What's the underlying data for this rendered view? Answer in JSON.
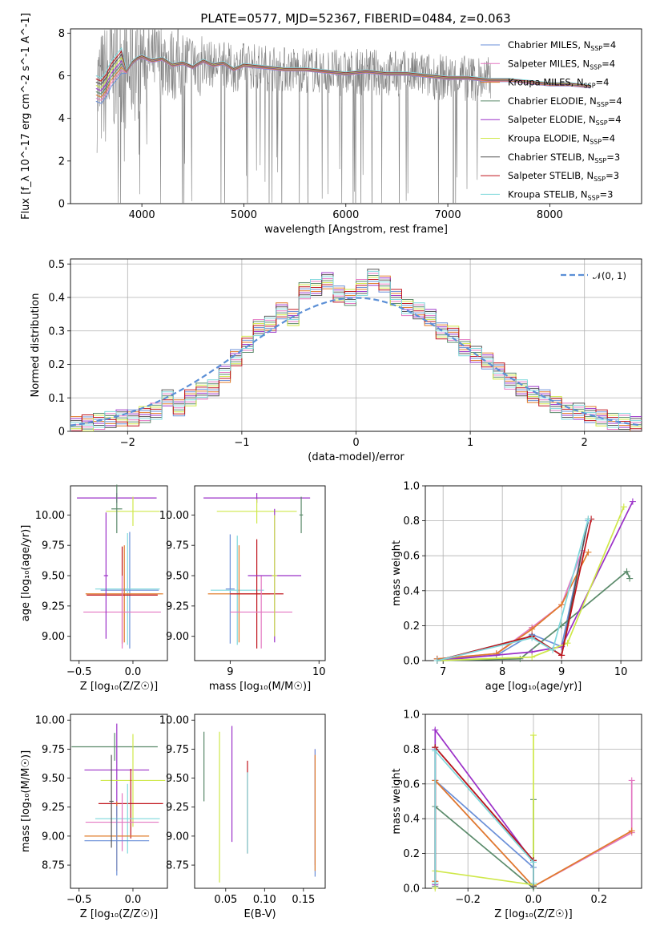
{
  "figure": {
    "title": "PLATE=0577, MJD=52367, FIBERID=0484, z=0.063"
  },
  "models": [
    {
      "name": "Chabrier MILES",
      "nssp": "4",
      "color": "#6a8fd8"
    },
    {
      "name": "Salpeter MILES",
      "nssp": "4",
      "color": "#e377c2"
    },
    {
      "name": "Kroupa MILES",
      "nssp": "4",
      "color": "#e07b2a"
    },
    {
      "name": "Chabrier ELODIE",
      "nssp": "4",
      "color": "#5a8a6a"
    },
    {
      "name": "Salpeter ELODIE",
      "nssp": "4",
      "color": "#9b30c8"
    },
    {
      "name": "Kroupa ELODIE",
      "nssp": "4",
      "color": "#cfe84a"
    },
    {
      "name": "Chabrier STELIB",
      "nssp": "3",
      "color": "#555555"
    },
    {
      "name": "Salpeter STELIB",
      "nssp": "3",
      "color": "#c0141c"
    },
    {
      "name": "Kroupa STELIB",
      "nssp": "3",
      "color": "#7fd8dc"
    }
  ],
  "chart_data": [
    {
      "panel": "spectrum",
      "type": "line",
      "xlabel": "wavelength [Angstrom, rest frame]",
      "ylabel": "Flux [f_λ 10^-17 erg cm^-2 s^-1 A^-1]",
      "xlim": [
        3300,
        8900
      ],
      "ylim": [
        0,
        8.2
      ],
      "xticks": [
        4000,
        5000,
        6000,
        7000,
        8000
      ],
      "yticks": [
        0,
        2,
        4,
        6,
        8
      ],
      "data_color": "#808080",
      "model_x": [
        3550,
        3600,
        3650,
        3700,
        3750,
        3800,
        3850,
        3900,
        3950,
        4000,
        4100,
        4200,
        4300,
        4400,
        4500,
        4600,
        4700,
        4800,
        4900,
        5000,
        5200,
        5400,
        5600,
        5800,
        6000,
        6200,
        6400,
        6600,
        6800,
        7000,
        7200,
        7400,
        7600,
        7800,
        8000,
        8200,
        8400
      ],
      "model_y": [
        5.4,
        5.3,
        5.6,
        6.1,
        6.4,
        6.7,
        6.2,
        6.6,
        6.8,
        6.9,
        6.7,
        6.8,
        6.5,
        6.6,
        6.4,
        6.7,
        6.5,
        6.6,
        6.3,
        6.5,
        6.4,
        6.3,
        6.3,
        6.2,
        6.1,
        6.2,
        6.1,
        6.1,
        6.0,
        5.9,
        5.9,
        5.8,
        5.8,
        5.7,
        5.6,
        5.6,
        5.5
      ]
    },
    {
      "panel": "residuals",
      "type": "line",
      "xlabel": "(data-model)/error",
      "ylabel": "Normed distribution",
      "xlim": [
        -2.5,
        2.5
      ],
      "ylim": [
        0,
        0.515
      ],
      "xticks": [
        -2,
        -1,
        0,
        1,
        2
      ],
      "yticks": [
        0.0,
        0.1,
        0.2,
        0.3,
        0.4,
        0.5
      ],
      "legend": "𝒩(0, 1)",
      "curve_color": "#5b8fd6",
      "bins": [
        -2.5,
        -2.4,
        -2.3,
        -2.2,
        -2.1,
        -2.0,
        -1.9,
        -1.8,
        -1.7,
        -1.6,
        -1.5,
        -1.4,
        -1.3,
        -1.2,
        -1.1,
        -1.0,
        -0.9,
        -0.8,
        -0.7,
        -0.6,
        -0.5,
        -0.4,
        -0.3,
        -0.2,
        -0.1,
        0.0,
        0.1,
        0.2,
        0.3,
        0.4,
        0.5,
        0.6,
        0.7,
        0.8,
        0.9,
        1.0,
        1.1,
        1.2,
        1.3,
        1.4,
        1.5,
        1.6,
        1.7,
        1.8,
        1.9,
        2.0,
        2.1,
        2.2,
        2.3,
        2.4,
        2.5
      ],
      "heights": [
        0.02,
        0.025,
        0.03,
        0.035,
        0.04,
        0.04,
        0.05,
        0.06,
        0.1,
        0.07,
        0.1,
        0.12,
        0.13,
        0.17,
        0.22,
        0.26,
        0.31,
        0.32,
        0.36,
        0.34,
        0.42,
        0.43,
        0.45,
        0.41,
        0.4,
        0.43,
        0.46,
        0.44,
        0.4,
        0.37,
        0.36,
        0.34,
        0.3,
        0.29,
        0.25,
        0.23,
        0.21,
        0.18,
        0.15,
        0.13,
        0.11,
        0.1,
        0.08,
        0.06,
        0.06,
        0.05,
        0.04,
        0.03,
        0.03,
        0.02
      ]
    },
    {
      "panel": "age-vs-Z",
      "type": "scatter",
      "xlabel": "Z [log10(Z/Z☉)]",
      "ylabel": "age [log10(age/yr)]",
      "xlim": [
        -0.58,
        0.32
      ],
      "ylim": [
        8.8,
        10.24
      ],
      "xticks": [
        "-0.5",
        "0.0"
      ],
      "yticks": [
        "9.00",
        "9.25",
        "9.50",
        "9.75",
        "10.00"
      ],
      "points": [
        {
          "m": 4,
          "x": -0.15,
          "y": 10.14,
          "ex": 0.37,
          "ey": 0.04
        },
        {
          "m": 5,
          "x": 0.0,
          "y": 10.03,
          "ex": 0.25,
          "ey": 0.12
        },
        {
          "m": 3,
          "x": -0.15,
          "y": 10.05,
          "ex": 0.05,
          "ey": 0.2
        },
        {
          "m": 0,
          "x": -0.03,
          "y": 9.38,
          "ex": 0.27,
          "ey": 0.48
        },
        {
          "m": 8,
          "x": -0.05,
          "y": 9.39,
          "ex": 0.3,
          "ey": 0.46
        },
        {
          "m": 2,
          "x": -0.08,
          "y": 9.35,
          "ex": 0.36,
          "ey": 0.4
        },
        {
          "m": 7,
          "x": -0.1,
          "y": 9.34,
          "ex": 0.33,
          "ey": 0.4
        },
        {
          "m": 1,
          "x": -0.1,
          "y": 9.2,
          "ex": 0.36,
          "ey": 0.3
        },
        {
          "m": 4,
          "x": -0.25,
          "y": 9.5,
          "ex": 0.02,
          "ey": 0.52
        }
      ]
    },
    {
      "panel": "age-vs-mass",
      "type": "scatter",
      "xlabel": "mass [log10(M/M☉)]",
      "ylabel": "",
      "xlim": [
        8.6,
        10.07
      ],
      "ylim": [
        8.8,
        10.24
      ],
      "xticks": [
        "9",
        "10"
      ],
      "yticks": [
        "9.00",
        "9.25",
        "9.50",
        "9.75",
        "10.00"
      ],
      "points": [
        {
          "m": 4,
          "x": 9.3,
          "y": 10.14,
          "ex": 0.6,
          "ey": 0.04
        },
        {
          "m": 5,
          "x": 9.3,
          "y": 10.03,
          "ex": 0.45,
          "ey": 0.1
        },
        {
          "m": 3,
          "x": 9.8,
          "y": 10.0,
          "ex": 0.02,
          "ey": 0.15
        },
        {
          "m": 0,
          "x": 9.0,
          "y": 9.39,
          "ex": 0.05,
          "ey": 0.45
        },
        {
          "m": 8,
          "x": 9.08,
          "y": 9.38,
          "ex": 0.3,
          "ey": 0.45
        },
        {
          "m": 2,
          "x": 9.1,
          "y": 9.35,
          "ex": 0.35,
          "ey": 0.4
        },
        {
          "m": 7,
          "x": 9.3,
          "y": 9.35,
          "ex": 0.3,
          "ey": 0.45
        },
        {
          "m": 1,
          "x": 9.35,
          "y": 9.2,
          "ex": 0.35,
          "ey": 0.3
        },
        {
          "m": 4,
          "x": 9.5,
          "y": 9.5,
          "ex": 0.3,
          "ey": 0.55
        },
        {
          "m": 5,
          "x": 9.5,
          "y": 9.5,
          "ex": 0.03,
          "ey": 0.5
        }
      ]
    },
    {
      "panel": "mass-weight-vs-age",
      "type": "line",
      "xlabel": "age [log10(age/yr)]",
      "ylabel": "mass weight",
      "xlim": [
        6.7,
        10.35
      ],
      "ylim": [
        0,
        1.0
      ],
      "xticks": [
        "7",
        "8",
        "9",
        "10"
      ],
      "yticks": [
        "0.0",
        "0.2",
        "0.4",
        "0.6",
        "0.8",
        "1.0"
      ],
      "series": [
        {
          "m": 0,
          "x": [
            6.9,
            7.9,
            8.5,
            9.0,
            9.45
          ],
          "y": [
            0.01,
            0.03,
            0.15,
            0.08,
            0.8
          ]
        },
        {
          "m": 1,
          "x": [
            6.9,
            7.9,
            8.5,
            9.0,
            9.35
          ],
          "y": [
            0.01,
            0.04,
            0.19,
            0.32,
            0.63
          ]
        },
        {
          "m": 2,
          "x": [
            6.9,
            7.9,
            8.5,
            9.0,
            9.45
          ],
          "y": [
            0.01,
            0.04,
            0.18,
            0.32,
            0.62
          ]
        },
        {
          "m": 3,
          "x": [
            6.9,
            8.3,
            9.0,
            10.1,
            10.15
          ],
          "y": [
            0.0,
            0.01,
            0.2,
            0.51,
            0.47
          ]
        },
        {
          "m": 4,
          "x": [
            6.9,
            8.5,
            9.0,
            10.2
          ],
          "y": [
            0.0,
            0.05,
            0.08,
            0.91
          ]
        },
        {
          "m": 5,
          "x": [
            6.9,
            8.5,
            9.1,
            10.05
          ],
          "y": [
            0.0,
            0.02,
            0.1,
            0.88
          ]
        },
        {
          "m": 6,
          "x": [
            6.9,
            8.5,
            9.0,
            9.45
          ],
          "y": [
            0.0,
            0.14,
            0.03,
            0.81
          ]
        },
        {
          "m": 7,
          "x": [
            6.9,
            8.5,
            9.0,
            9.5
          ],
          "y": [
            0.0,
            0.14,
            0.03,
            0.81
          ]
        },
        {
          "m": 8,
          "x": [
            6.9,
            8.5,
            8.85,
            9.45
          ],
          "y": [
            0.0,
            0.13,
            0.06,
            0.81
          ]
        }
      ]
    },
    {
      "panel": "mass-vs-Z",
      "type": "scatter",
      "xlabel": "Z [log10(Z/Z☉)]",
      "ylabel": "mass [log10(M/M☉)]",
      "xlim": [
        -0.58,
        0.32
      ],
      "ylim": [
        8.55,
        10.05
      ],
      "xticks": [
        "-0.5",
        "0.0"
      ],
      "yticks": [
        "8.75",
        "9.00",
        "9.25",
        "9.50",
        "9.75",
        "10.00"
      ],
      "points": [
        {
          "m": 3,
          "x": -0.17,
          "y": 9.77,
          "ex": 0.4,
          "ey": 0.12
        },
        {
          "m": 4,
          "x": -0.15,
          "y": 9.57,
          "ex": 0.3,
          "ey": 0.4
        },
        {
          "m": 5,
          "x": 0.0,
          "y": 9.48,
          "ex": 0.3,
          "ey": 0.4
        },
        {
          "m": 7,
          "x": -0.02,
          "y": 9.28,
          "ex": 0.3,
          "ey": 0.3
        },
        {
          "m": 8,
          "x": -0.05,
          "y": 9.15,
          "ex": 0.3,
          "ey": 0.3
        },
        {
          "m": 1,
          "x": -0.1,
          "y": 9.12,
          "ex": 0.34,
          "ey": 0.25
        },
        {
          "m": 2,
          "x": -0.15,
          "y": 9.0,
          "ex": 0.3,
          "ey": 0.3
        },
        {
          "m": 0,
          "x": -0.15,
          "y": 8.96,
          "ex": 0.3,
          "ey": 0.3
        },
        {
          "m": 6,
          "x": -0.2,
          "y": 9.3,
          "ex": 0.02,
          "ey": 0.4
        }
      ]
    },
    {
      "panel": "mass-vs-EBV",
      "type": "scatter",
      "xlabel": "E(B-V)",
      "ylabel": "",
      "xlim": [
        0.01,
        0.178
      ],
      "ylim": [
        8.55,
        10.05
      ],
      "xticks": [
        "0.05",
        "0.10",
        "0.15"
      ],
      "yticks": [
        "8.75",
        "9.00",
        "9.25",
        "9.50",
        "9.75",
        "10.00"
      ],
      "points": [
        {
          "m": 3,
          "x": 0.022,
          "y": 9.6,
          "ey": 0.3
        },
        {
          "m": 5,
          "x": 0.042,
          "y": 9.25,
          "ey": 0.65
        },
        {
          "m": 4,
          "x": 0.058,
          "y": 9.45,
          "ey": 0.5
        },
        {
          "m": 7,
          "x": 0.078,
          "y": 9.25,
          "ey": 0.4
        },
        {
          "m": 8,
          "x": 0.078,
          "y": 9.2,
          "ey": 0.35
        },
        {
          "m": 1,
          "x": 0.165,
          "y": 9.25,
          "ey": 0.5
        },
        {
          "m": 0,
          "x": 0.165,
          "y": 9.2,
          "ey": 0.55
        },
        {
          "m": 2,
          "x": 0.165,
          "y": 9.2,
          "ey": 0.5
        }
      ]
    },
    {
      "panel": "mass-weight-vs-Z",
      "type": "line",
      "xlabel": "Z [log10(Z/Z☉)]",
      "ylabel": "mass weight",
      "xlim": [
        -0.33,
        0.33
      ],
      "ylim": [
        0,
        1.0
      ],
      "xticks": [
        "-0.2",
        "0.0",
        "0.2"
      ],
      "yticks": [
        "0.0",
        "0.2",
        "0.4",
        "0.6",
        "0.8",
        "1.0"
      ],
      "series": [
        {
          "m": 0,
          "x": [
            -0.3,
            -0.3,
            0.0,
            0.0
          ],
          "y": [
            0.8,
            0.62,
            0.12,
            0.03
          ]
        },
        {
          "m": 1,
          "x": [
            -0.3,
            -0.3,
            0.0,
            0.3,
            0.3
          ],
          "y": [
            0.04,
            0.62,
            0.01,
            0.32,
            0.62
          ]
        },
        {
          "m": 2,
          "x": [
            -0.3,
            -0.3,
            0.0,
            0.3
          ],
          "y": [
            0.04,
            0.62,
            0.01,
            0.33
          ]
        },
        {
          "m": 3,
          "x": [
            -0.3,
            -0.3,
            0.0,
            0.0
          ],
          "y": [
            0.01,
            0.47,
            0.0,
            0.51
          ]
        },
        {
          "m": 4,
          "x": [
            -0.3,
            -0.3,
            0.0,
            0.0
          ],
          "y": [
            0.02,
            0.91,
            0.15,
            0.02
          ]
        },
        {
          "m": 5,
          "x": [
            -0.3,
            -0.3,
            0.0,
            0.0
          ],
          "y": [
            0.0,
            0.1,
            0.02,
            0.88
          ]
        },
        {
          "m": 6,
          "x": [
            -0.3,
            -0.3,
            0.0,
            0.0
          ],
          "y": [
            0.03,
            0.81,
            0.16,
            0.01
          ]
        },
        {
          "m": 7,
          "x": [
            -0.3,
            -0.3,
            0.0,
            0.0
          ],
          "y": [
            0.03,
            0.81,
            0.16,
            0.03
          ]
        },
        {
          "m": 8,
          "x": [
            -0.3,
            -0.3,
            0.0,
            0.0
          ],
          "y": [
            0.03,
            0.79,
            0.15,
            0.03
          ]
        }
      ]
    }
  ]
}
